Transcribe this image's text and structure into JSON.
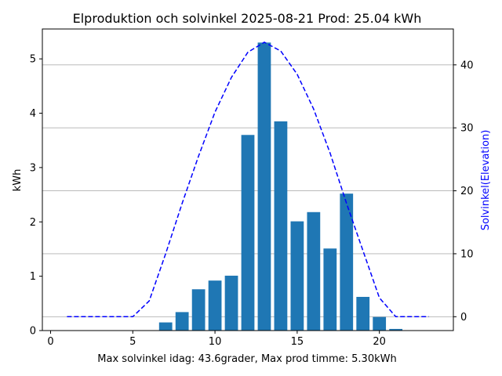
{
  "chart_data": {
    "type": "bar",
    "title": "Elproduktion och solvinkel 2025-08-21 Prod: 25.04 kWh",
    "xlabel": "Max solvinkel idag: 43.6grader, Max prod timme: 5.30kWh",
    "ylabel": "kWh",
    "ylabel_right": "Solvinkel(Elevation)",
    "xlim": [
      -0.5,
      24.5
    ],
    "ylim": [
      0,
      5.55
    ],
    "ylim_right": [
      -2.2,
      45.7
    ],
    "x_ticks": [
      0,
      5,
      10,
      15,
      20
    ],
    "y_ticks": [
      0,
      1,
      2,
      3,
      4,
      5
    ],
    "y_right_ticks": [
      0,
      10,
      20,
      30,
      40
    ],
    "grid": "horizontal lines on right axis ticks",
    "colors": {
      "bars": "#1f77b4",
      "elevation_line": "#0000ff"
    },
    "series": [
      {
        "kind": "bar",
        "x": [
          7,
          8,
          9,
          10,
          11,
          12,
          13,
          14,
          15,
          16,
          17,
          18,
          19,
          20,
          21
        ],
        "values": [
          0.15,
          0.34,
          0.76,
          0.92,
          1.01,
          3.6,
          5.3,
          3.85,
          2.01,
          2.18,
          1.51,
          2.52,
          0.62,
          0.25,
          0.03
        ]
      },
      {
        "kind": "line",
        "axis": "right",
        "style": "dashed",
        "x": [
          1,
          2,
          3,
          4,
          5,
          6,
          7,
          8,
          9,
          10,
          11,
          12,
          13,
          14,
          15,
          16,
          17,
          18,
          19,
          20,
          21,
          22,
          23
        ],
        "values": [
          0,
          0,
          0,
          0,
          0,
          2.5,
          10,
          18,
          25.5,
          32.5,
          38,
          42,
          43.6,
          42.2,
          38.5,
          33,
          26,
          18,
          10.5,
          3,
          0,
          0,
          0
        ]
      }
    ]
  }
}
